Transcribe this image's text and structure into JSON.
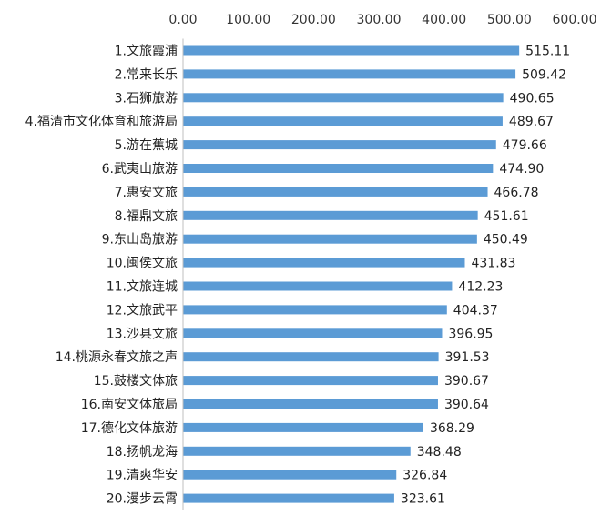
{
  "chart_data": {
    "type": "bar",
    "orientation": "horizontal",
    "title": "",
    "xlabel": "",
    "ylabel": "",
    "xlim": [
      0,
      600
    ],
    "ticks": [
      "0.00",
      "100.00",
      "200.00",
      "300.00",
      "400.00",
      "500.00",
      "600.00"
    ],
    "tick_values": [
      0,
      100,
      200,
      300,
      400,
      500,
      600
    ],
    "axis_position": "top",
    "grid": false,
    "legend": "none",
    "bar_color": "#5b9bd5",
    "categories": [
      "1.文旅霞浦",
      "2.常来长乐",
      "3.石狮旅游",
      "4.福清市文化体育和旅游局",
      "5.游在蕉城",
      "6.武夷山旅游",
      "7.惠安文旅",
      "8.福鼎文旅",
      "9.东山岛旅游",
      "10.闽侯文旅",
      "11.文旅连城",
      "12.文旅武平",
      "13.沙县文旅",
      "14.桃源永春文旅之声",
      "15.鼓楼文体旅",
      "16.南安文体旅局",
      "17.德化文体旅游",
      "18.扬帆龙海",
      "19.清爽华安",
      "20.漫步云霄"
    ],
    "values": [
      515.11,
      509.42,
      490.65,
      489.67,
      479.66,
      474.9,
      466.78,
      451.61,
      450.49,
      431.83,
      412.23,
      404.37,
      396.95,
      391.53,
      390.67,
      390.64,
      368.29,
      348.48,
      326.84,
      323.61
    ],
    "value_labels": [
      "515.11",
      "509.42",
      "490.65",
      "489.67",
      "479.66",
      "474.90",
      "466.78",
      "451.61",
      "450.49",
      "431.83",
      "412.23",
      "404.37",
      "396.95",
      "391.53",
      "390.67",
      "390.64",
      "368.29",
      "348.48",
      "326.84",
      "323.61"
    ]
  }
}
